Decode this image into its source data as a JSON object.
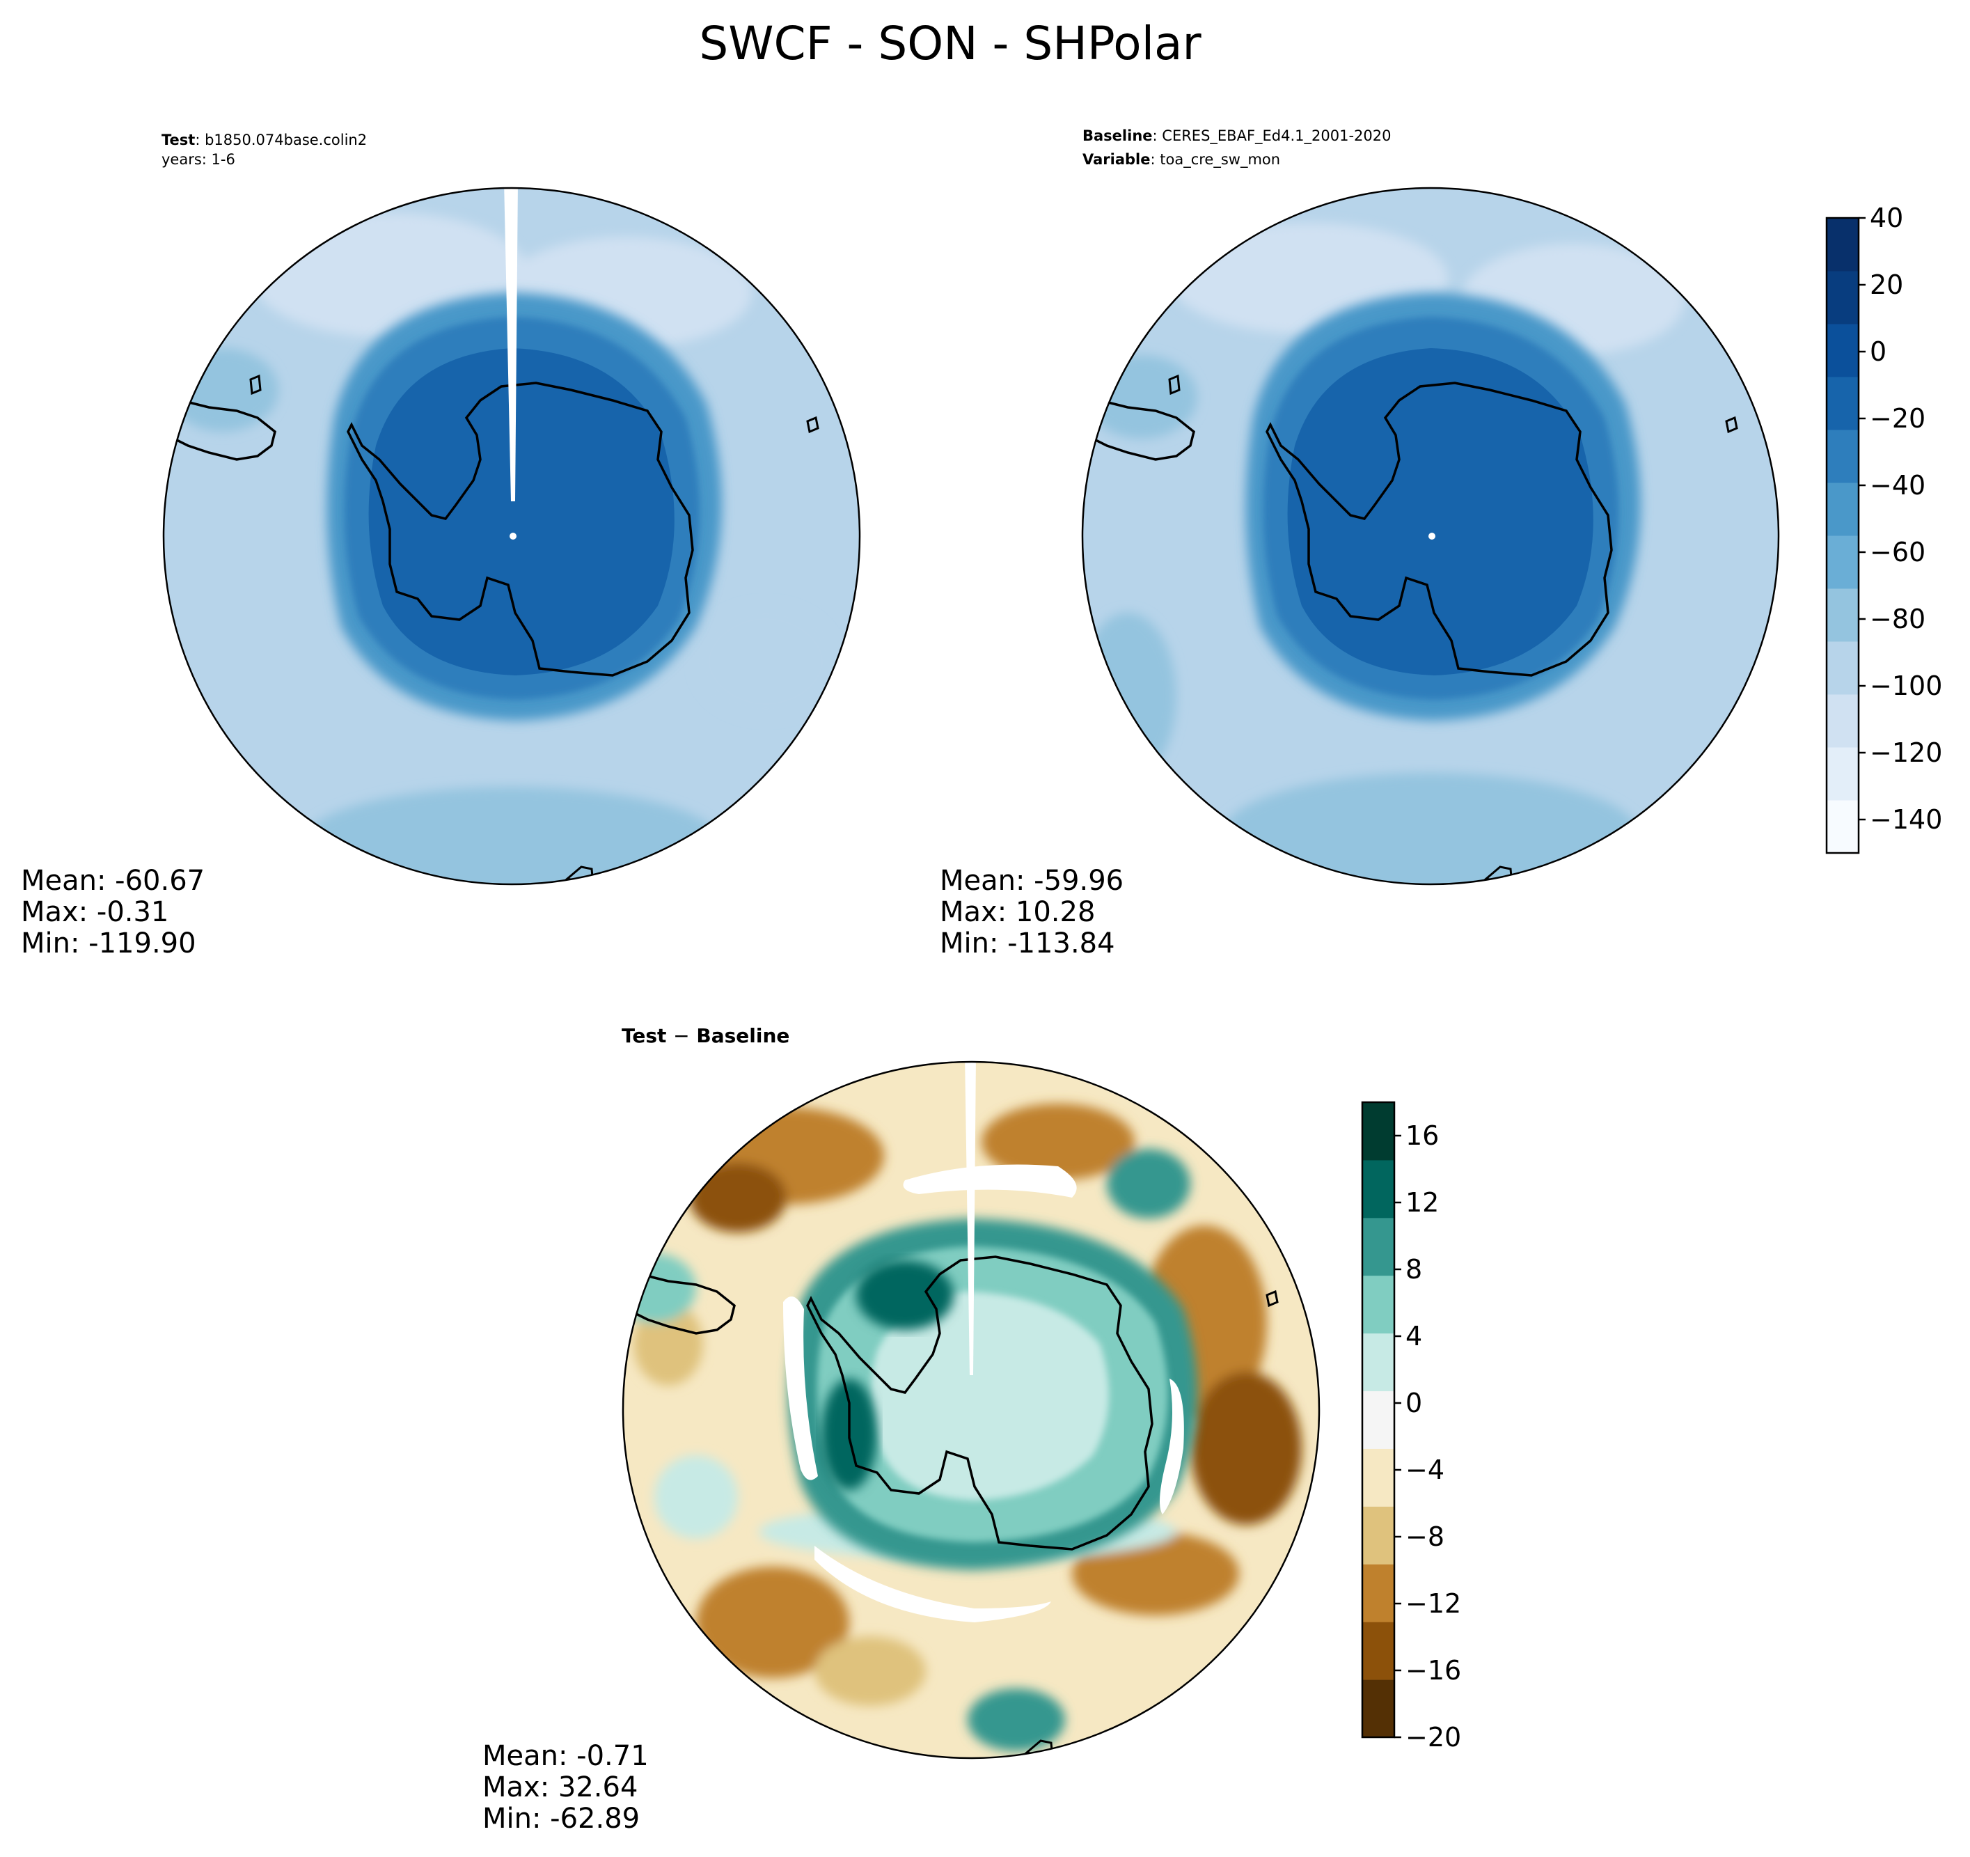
{
  "figure_title": "SWCF - SON - SHPolar",
  "panels": {
    "test": {
      "header_label": "Test",
      "header_value": "b1850.074base.colin2",
      "header_line2": "years: 1-6",
      "mean": "Mean: -60.67",
      "max": "Max: -0.31",
      "min": "Min: -119.90"
    },
    "baseline": {
      "header_label": "Baseline",
      "header_value": "CERES_EBAF_Ed4.1_2001-2020",
      "header2_label": "Variable",
      "header2_value": "toa_cre_sw_mon",
      "mean": "Mean: -59.96",
      "max": "Max: 10.28",
      "min": "Min: -113.84"
    },
    "diff": {
      "title_a": "Test",
      "title_op": "−",
      "title_b": "Baseline",
      "mean": "Mean: -0.71",
      "max": "Max: 32.64",
      "min": "Min: -62.89"
    }
  },
  "colorbars": {
    "main": {
      "ticks": [
        "40",
        "20",
        "0",
        "−20",
        "−40",
        "−60",
        "−80",
        "−100",
        "−120",
        "−140"
      ],
      "range": [
        -150,
        40
      ],
      "colors": [
        "#f7fbff",
        "#e3eef9",
        "#d0e1f2",
        "#b7d4ea",
        "#94c4df",
        "#6aaed6",
        "#4a98c9",
        "#2e7ebc",
        "#1764ab",
        "#0b509b",
        "#083d7f",
        "#08306b"
      ]
    },
    "diff": {
      "ticks": [
        "16",
        "12",
        "8",
        "4",
        "0",
        "−4",
        "−8",
        "−12",
        "−16",
        "−20"
      ],
      "range": [
        -20,
        18
      ],
      "colors": [
        "#543005",
        "#8c510a",
        "#bf812d",
        "#dfc27d",
        "#f6e8c3",
        "#f5f5f5",
        "#c7eae5",
        "#80cdc1",
        "#35978f",
        "#01665e",
        "#003c30"
      ]
    }
  },
  "chart_data": [
    {
      "type": "heatmap",
      "title": "SWCF - SON - SHPolar",
      "series": [
        {
          "name": "Test",
          "mean": -60.67,
          "max": -0.31,
          "min": -119.9
        }
      ],
      "projection": "south polar stereographic",
      "colorbar_range": [
        -150,
        40
      ]
    },
    {
      "type": "heatmap",
      "series": [
        {
          "name": "Baseline",
          "mean": -59.96,
          "max": 10.28,
          "min": -113.84
        }
      ],
      "projection": "south polar stereographic",
      "colorbar_range": [
        -150,
        40
      ]
    },
    {
      "type": "heatmap",
      "series": [
        {
          "name": "Test − Baseline",
          "mean": -0.71,
          "max": 32.64,
          "min": -62.89
        }
      ],
      "projection": "south polar stereographic",
      "colorbar_range": [
        -20,
        18
      ]
    }
  ]
}
